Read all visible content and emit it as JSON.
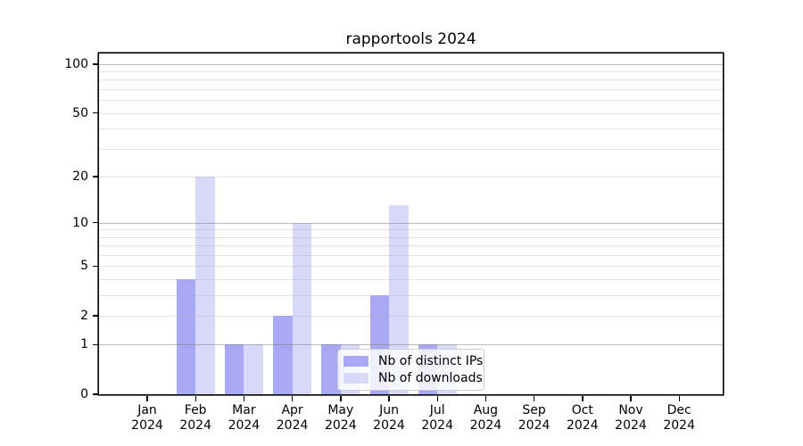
{
  "page": {
    "background": "#ffffff"
  },
  "chart_data": {
    "type": "bar",
    "title": "rapportools 2024",
    "categories": [
      "Jan",
      "Feb",
      "Mar",
      "Apr",
      "May",
      "Jun",
      "Jul",
      "Aug",
      "Sep",
      "Oct",
      "Nov",
      "Dec"
    ],
    "category_year_line": "2024",
    "series": [
      {
        "name": "Nb of distinct IPs",
        "color": "#a8a8f4",
        "values": [
          0,
          4,
          1,
          2,
          1,
          3,
          1,
          0,
          0,
          0,
          0,
          0
        ]
      },
      {
        "name": "Nb of downloads",
        "color": "#d8d8f9",
        "values": [
          0,
          20,
          1,
          10,
          1,
          13,
          1,
          0,
          0,
          0,
          0,
          0
        ]
      }
    ],
    "xlabel": "",
    "ylabel": "",
    "yscale": "log1p",
    "ylim": [
      0,
      115.9
    ],
    "yticks": [
      0,
      1,
      2,
      5,
      10,
      20,
      50,
      100
    ],
    "grid": {
      "major_values": [
        1,
        10,
        100
      ],
      "minor_values": [
        2,
        3,
        4,
        5,
        6,
        7,
        8,
        9,
        20,
        30,
        40,
        50,
        60,
        70,
        80,
        90
      ]
    },
    "legend": {
      "position": "lower right of plot",
      "frame": true
    },
    "colors": {
      "axis": "#000000",
      "major_grid": "#c2c2c2",
      "minor_grid": "#ececec"
    }
  }
}
